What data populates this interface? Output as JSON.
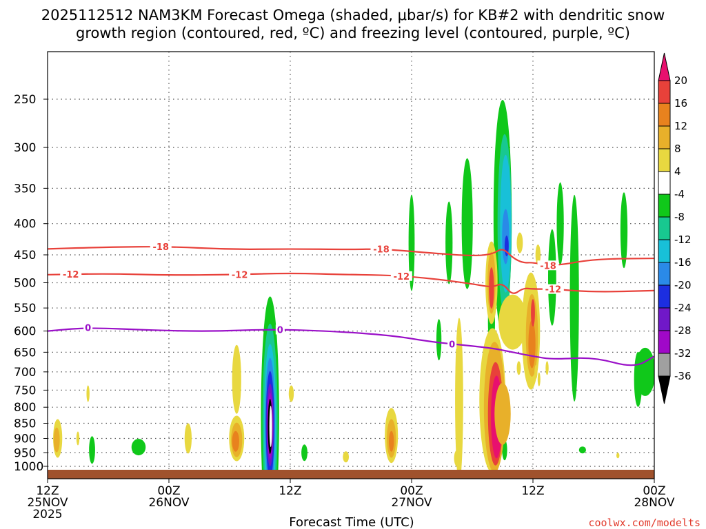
{
  "chart_data": {
    "type": "heatmap",
    "title_line1": "2025112512 NAM3KM Forecast Omega (shaded, μbar/s) for KB#2 with dendritic snow",
    "title_line2": "growth region (contoured, red, ºC) and freezing level (contoured, purple, ºC)",
    "xlabel": "Forecast Time (UTC)",
    "credit": "coolwx.com/modelts",
    "y_axis": {
      "ticks": [
        250,
        300,
        350,
        400,
        450,
        500,
        550,
        600,
        650,
        700,
        750,
        800,
        850,
        900,
        950,
        1000
      ],
      "labels": [
        "250",
        "300",
        "350",
        "400",
        "450",
        "500",
        "550",
        "600",
        "650",
        "700",
        "750",
        "800",
        "850",
        "900",
        "950",
        "1000"
      ],
      "range": [
        200,
        1030
      ],
      "units": "hPa",
      "scale": "log"
    },
    "x_axis": {
      "range": [
        0,
        60
      ],
      "units": "forecast hours from 2025-11-25 12Z",
      "ticks": [
        {
          "hour": 0,
          "line1": "12Z",
          "line2": "25NOV",
          "line3": "2025"
        },
        {
          "hour": 12,
          "line1": "00Z",
          "line2": "26NOV",
          "line3": ""
        },
        {
          "hour": 24,
          "line1": "12Z",
          "line2": "",
          "line3": ""
        },
        {
          "hour": 36,
          "line1": "00Z",
          "line2": "27NOV",
          "line3": ""
        },
        {
          "hour": 48,
          "line1": "12Z",
          "line2": "",
          "line3": ""
        },
        {
          "hour": 60,
          "line1": "00Z",
          "line2": "28NOV",
          "line3": ""
        }
      ]
    },
    "colorbar": {
      "levels": [
        "20",
        "16",
        "12",
        "8",
        "4",
        "-4",
        "-8",
        "-12",
        "-16",
        "-20",
        "-24",
        "-28",
        "-32",
        "-36"
      ],
      "colors": [
        "#e8106e",
        "#e8413a",
        "#e8821e",
        "#e8b02a",
        "#e8d840",
        "#ffffff",
        "#10c81a",
        "#18c890",
        "#18c0d8",
        "#2a8ae8",
        "#1c2ee0",
        "#7018c8",
        "#a008c8",
        "#a0a0a0",
        "#000000"
      ]
    },
    "contours": [
      {
        "name": "-18 °C isotherm",
        "value": "-18",
        "color": "#e8413a",
        "hours": [
          0,
          6,
          12,
          18,
          24,
          30,
          33,
          38,
          42,
          44,
          45,
          46,
          47,
          48,
          50,
          54,
          60
        ],
        "pressures": [
          440,
          437,
          436,
          441,
          440,
          441,
          440,
          447,
          452,
          449,
          438,
          455,
          464,
          463,
          470,
          457,
          456
        ],
        "labels": [
          {
            "hour": 11.2,
            "text": "-18"
          },
          {
            "hour": 33.0,
            "text": "-18"
          },
          {
            "hour": 49.5,
            "text": "-18"
          }
        ]
      },
      {
        "name": "-12 °C isotherm",
        "value": "-12",
        "color": "#e8413a",
        "hours": [
          0,
          6,
          12,
          18,
          24,
          30,
          34,
          38,
          42,
          44,
          45,
          46,
          47,
          48,
          50,
          54,
          60
        ],
        "pressures": [
          485,
          483,
          486,
          485,
          482,
          485,
          486,
          492,
          502,
          509,
          500,
          525,
          510,
          512,
          512,
          518,
          515
        ],
        "labels": [
          {
            "hour": 2.3,
            "text": "-12"
          },
          {
            "hour": 19.0,
            "text": "-12"
          },
          {
            "hour": 35.0,
            "text": "-12"
          },
          {
            "hour": 50.0,
            "text": "-12"
          }
        ]
      },
      {
        "name": "0 °C freezing level",
        "value": "0",
        "color": "#9a10c8",
        "hours": [
          0,
          4,
          10,
          16,
          22,
          28,
          34,
          38,
          40,
          44,
          46,
          48,
          50,
          54,
          58,
          60
        ],
        "pressures": [
          600,
          592,
          598,
          601,
          596,
          600,
          610,
          625,
          630,
          640,
          650,
          660,
          668,
          662,
          690,
          660
        ],
        "labels": [
          {
            "hour": 4.0,
            "text": "0"
          },
          {
            "hour": 23.0,
            "text": "0"
          },
          {
            "hour": 40.0,
            "text": "0"
          }
        ]
      }
    ],
    "omega_features": [
      {
        "name": "strong rising core",
        "hour": 22.0,
        "p_top": 660,
        "p_bottom": 1000,
        "min_value": -36
      },
      {
        "name": "upper rising plume",
        "hour": 45.0,
        "p_top": 300,
        "p_bottom": 480,
        "min_value": -20
      },
      {
        "name": "sinking core",
        "hour": 44.3,
        "p_top": 680,
        "p_bottom": 990,
        "max_value": 20
      },
      {
        "name": "sinking band",
        "hour": 44.0,
        "p_top": 430,
        "p_bottom": 560,
        "max_value": 20
      },
      {
        "name": "sinking band east",
        "hour": 47.8,
        "p_top": 510,
        "p_bottom": 700,
        "max_value": 20
      }
    ]
  }
}
